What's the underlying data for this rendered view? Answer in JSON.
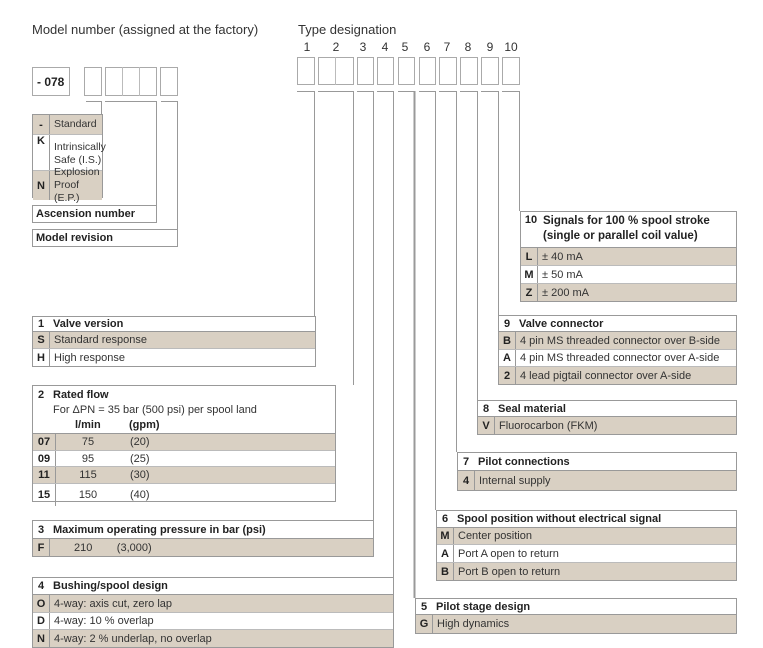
{
  "model_header": "Model number (assigned at the factory)",
  "type_header": "Type designation",
  "model_prefix": "- 078",
  "position_numbers": [
    "1",
    "2",
    "3",
    "4",
    "5",
    "6",
    "7",
    "8",
    "9",
    "10"
  ],
  "colors": {
    "shade": "#d9d0c3",
    "border": "#999999"
  },
  "model_type_table": [
    {
      "code": "-",
      "text": "Standard"
    },
    {
      "code": "K",
      "text": "Intrinsically Safe (I.S.)"
    },
    {
      "code": "N",
      "text": "Explosion Proof (E.P.)"
    }
  ],
  "ascension_label": "Ascension number",
  "revision_label": "Model revision",
  "tables": {
    "t1": {
      "num": "1",
      "title": "Valve version",
      "rows": [
        {
          "code": "S",
          "text": "Standard response"
        },
        {
          "code": "H",
          "text": "High response"
        }
      ]
    },
    "t2": {
      "num": "2",
      "title": "Rated flow",
      "subtitle": "For ΔPN = 35 bar (500 psi) per spool land",
      "col1": "l/min",
      "col2": "(gpm)",
      "rows": [
        {
          "code": "07",
          "lmin": "75",
          "gpm": "(20)"
        },
        {
          "code": "09",
          "lmin": "95",
          "gpm": "(25)"
        },
        {
          "code": "11",
          "lmin": "115",
          "gpm": "(30)"
        },
        {
          "code": "15",
          "lmin": "150",
          "gpm": "(40)"
        }
      ]
    },
    "t3": {
      "num": "3",
      "title": "Maximum operating pressure in bar (psi)",
      "rows": [
        {
          "code": "F",
          "text": "210        (3,000)"
        }
      ]
    },
    "t4": {
      "num": "4",
      "title": "Bushing/spool design",
      "rows": [
        {
          "code": "O",
          "text": "4-way: axis cut, zero lap"
        },
        {
          "code": "D",
          "text": "4-way: 10 % overlap"
        },
        {
          "code": "N",
          "text": "4-way: 2 % underlap, no overlap"
        }
      ]
    },
    "t5": {
      "num": "5",
      "title": "Pilot stage design",
      "rows": [
        {
          "code": "G",
          "text": "High dynamics"
        }
      ]
    },
    "t6": {
      "num": "6",
      "title": "Spool position without electrical signal",
      "rows": [
        {
          "code": "M",
          "text": "Center position"
        },
        {
          "code": "A",
          "text": "Port A open to return"
        },
        {
          "code": "B",
          "text": "Port B open to return"
        }
      ]
    },
    "t7": {
      "num": "7",
      "title": "Pilot connections",
      "rows": [
        {
          "code": "4",
          "text": "Internal supply"
        }
      ]
    },
    "t8": {
      "num": "8",
      "title": "Seal material",
      "rows": [
        {
          "code": "V",
          "text": "Fluorocarbon (FKM)"
        }
      ]
    },
    "t9": {
      "num": "9",
      "title": "Valve connector",
      "rows": [
        {
          "code": "B",
          "text": "4 pin MS threaded connector over B-side"
        },
        {
          "code": "A",
          "text": "4 pin MS threaded connector over A-side"
        },
        {
          "code": "2",
          "text": "4 lead pigtail connector over A-side"
        }
      ]
    },
    "t10": {
      "num": "10",
      "title": "Signals for 100 % spool stroke (single or parallel coil value)",
      "rows": [
        {
          "code": "L",
          "text": "± 40 mA"
        },
        {
          "code": "M",
          "text": "± 50 mA"
        },
        {
          "code": "Z",
          "text": "± 200 mA"
        }
      ]
    }
  }
}
